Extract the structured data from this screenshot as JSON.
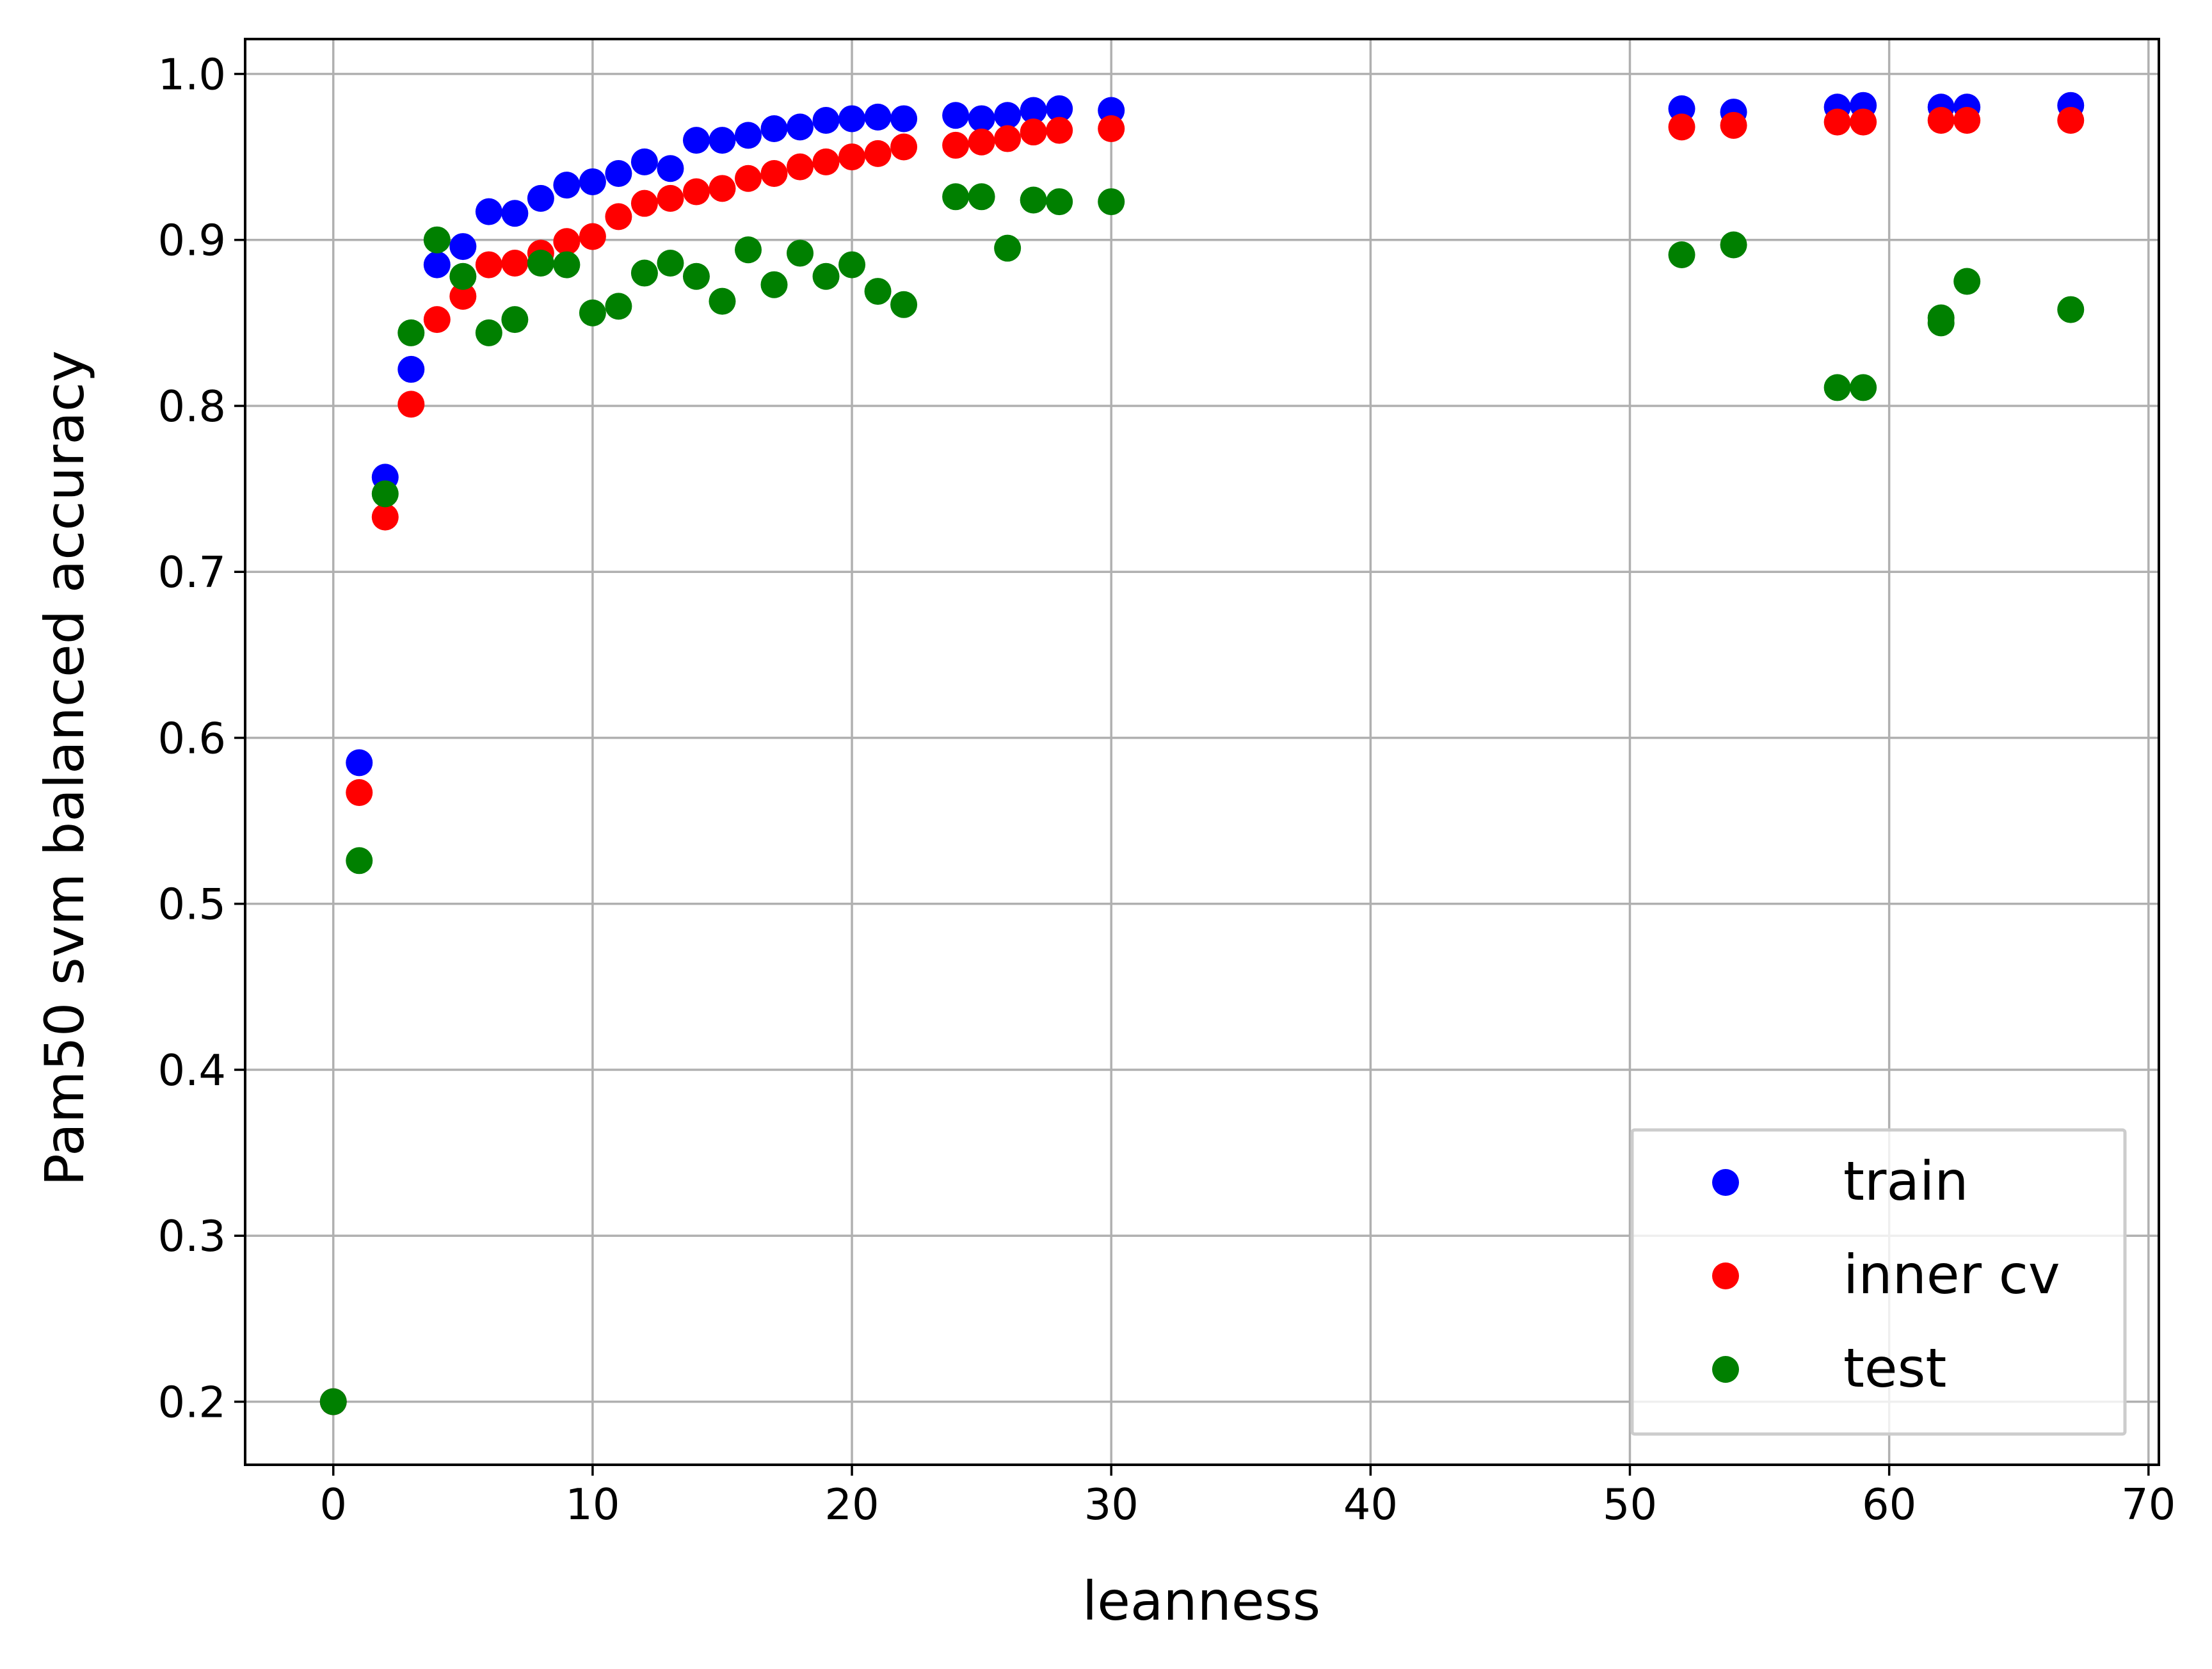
{
  "chart_data": {
    "type": "scatter",
    "xlabel": "leanness",
    "ylabel": "Pam50 svm balanced accuracy",
    "xlim": [
      -3.4,
      70.4
    ],
    "ylim": [
      0.162,
      1.021
    ],
    "xticks": [
      0,
      10,
      20,
      30,
      40,
      50,
      60,
      70
    ],
    "xtick_labels": [
      "0",
      "10",
      "20",
      "30",
      "40",
      "50",
      "60",
      "70"
    ],
    "yticks": [
      0.2,
      0.3,
      0.4,
      0.5,
      0.6,
      0.7,
      0.8,
      0.9,
      1.0
    ],
    "ytick_labels": [
      "0.2",
      "0.3",
      "0.4",
      "0.5",
      "0.6",
      "0.7",
      "0.8",
      "0.9",
      "1.0"
    ],
    "grid": true,
    "legend_position": "bottom-right",
    "series": [
      {
        "name": "train",
        "color": "#0000ff",
        "points": [
          [
            0,
            0.2
          ],
          [
            1,
            0.585
          ],
          [
            2,
            0.757
          ],
          [
            3,
            0.822
          ],
          [
            4,
            0.885
          ],
          [
            5,
            0.896
          ],
          [
            6,
            0.917
          ],
          [
            7,
            0.916
          ],
          [
            8,
            0.925
          ],
          [
            9,
            0.933
          ],
          [
            10,
            0.935
          ],
          [
            11,
            0.94
          ],
          [
            12,
            0.947
          ],
          [
            13,
            0.943
          ],
          [
            14,
            0.96
          ],
          [
            15,
            0.96
          ],
          [
            16,
            0.963
          ],
          [
            17,
            0.967
          ],
          [
            18,
            0.968
          ],
          [
            19,
            0.972
          ],
          [
            20,
            0.973
          ],
          [
            21,
            0.974
          ],
          [
            22,
            0.973
          ],
          [
            24,
            0.975
          ],
          [
            25,
            0.973
          ],
          [
            26,
            0.975
          ],
          [
            27,
            0.978
          ],
          [
            28,
            0.979
          ],
          [
            30,
            0.978
          ],
          [
            52,
            0.979
          ],
          [
            54,
            0.977
          ],
          [
            58,
            0.98
          ],
          [
            59,
            0.981
          ],
          [
            62,
            0.98
          ],
          [
            63,
            0.98
          ],
          [
            67,
            0.981
          ]
        ]
      },
      {
        "name": "inner cv",
        "color": "#ff0000",
        "points": [
          [
            0,
            0.2
          ],
          [
            1,
            0.567
          ],
          [
            2,
            0.733
          ],
          [
            3,
            0.801
          ],
          [
            4,
            0.852
          ],
          [
            5,
            0.866
          ],
          [
            6,
            0.885
          ],
          [
            7,
            0.886
          ],
          [
            8,
            0.892
          ],
          [
            9,
            0.899
          ],
          [
            10,
            0.902
          ],
          [
            11,
            0.914
          ],
          [
            12,
            0.922
          ],
          [
            13,
            0.925
          ],
          [
            14,
            0.929
          ],
          [
            15,
            0.931
          ],
          [
            16,
            0.937
          ],
          [
            17,
            0.94
          ],
          [
            18,
            0.944
          ],
          [
            19,
            0.947
          ],
          [
            20,
            0.95
          ],
          [
            21,
            0.952
          ],
          [
            22,
            0.956
          ],
          [
            24,
            0.957
          ],
          [
            25,
            0.959
          ],
          [
            26,
            0.961
          ],
          [
            27,
            0.965
          ],
          [
            28,
            0.966
          ],
          [
            30,
            0.967
          ],
          [
            52,
            0.968
          ],
          [
            54,
            0.969
          ],
          [
            58,
            0.971
          ],
          [
            59,
            0.971
          ],
          [
            62,
            0.972
          ],
          [
            63,
            0.972
          ],
          [
            67,
            0.972
          ]
        ]
      },
      {
        "name": "test",
        "color": "#008000",
        "points": [
          [
            0,
            0.2
          ],
          [
            1,
            0.526
          ],
          [
            2,
            0.747
          ],
          [
            3,
            0.844
          ],
          [
            4,
            0.9
          ],
          [
            5,
            0.878
          ],
          [
            6,
            0.844
          ],
          [
            7,
            0.852
          ],
          [
            8,
            0.886
          ],
          [
            9,
            0.885
          ],
          [
            10,
            0.856
          ],
          [
            11,
            0.86
          ],
          [
            12,
            0.88
          ],
          [
            13,
            0.886
          ],
          [
            14,
            0.878
          ],
          [
            15,
            0.863
          ],
          [
            16,
            0.894
          ],
          [
            17,
            0.873
          ],
          [
            18,
            0.892
          ],
          [
            19,
            0.878
          ],
          [
            20,
            0.885
          ],
          [
            21,
            0.869
          ],
          [
            22,
            0.861
          ],
          [
            24,
            0.926
          ],
          [
            25,
            0.926
          ],
          [
            26,
            0.895
          ],
          [
            27,
            0.924
          ],
          [
            28,
            0.923
          ],
          [
            30,
            0.923
          ],
          [
            52,
            0.891
          ],
          [
            54,
            0.897
          ],
          [
            58,
            0.811
          ],
          [
            59,
            0.811
          ],
          [
            62,
            0.85
          ],
          [
            62,
            0.853
          ],
          [
            63,
            0.875
          ],
          [
            67,
            0.858
          ]
        ]
      }
    ]
  }
}
